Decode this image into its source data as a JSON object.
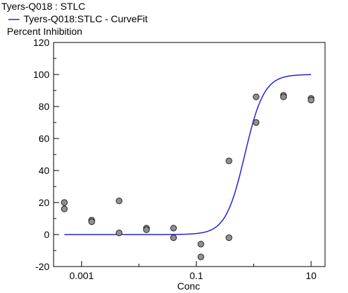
{
  "chart_data": {
    "type": "scatter",
    "title": "Tyers-Q018  : STLC",
    "legend": [
      {
        "label": "Tyers-Q018:STLC - CurveFit",
        "color": "#2222dd"
      }
    ],
    "ylabel": "Percent Inhibition",
    "xlabel": "Conc",
    "x_scale": "log",
    "xlim": [
      0.0005,
      10
    ],
    "ylim": [
      -20,
      120
    ],
    "x_ticks": [
      0.001,
      0.1,
      10
    ],
    "x_tick_labels": [
      "0.001",
      "0.1",
      "10"
    ],
    "y_ticks": [
      -20,
      0,
      20,
      40,
      60,
      80,
      100,
      120
    ],
    "y_tick_labels": [
      "-20",
      "0",
      "20",
      "40",
      "60",
      "80",
      "100",
      "120"
    ],
    "grid": false,
    "series": [
      {
        "kind": "scatter",
        "color": "#909090",
        "points": [
          {
            "x": 0.0005,
            "y": 20
          },
          {
            "x": 0.0005,
            "y": 16
          },
          {
            "x": 0.0015,
            "y": 9
          },
          {
            "x": 0.0015,
            "y": 8
          },
          {
            "x": 0.0045,
            "y": 21
          },
          {
            "x": 0.0045,
            "y": 1
          },
          {
            "x": 0.0135,
            "y": 4
          },
          {
            "x": 0.0135,
            "y": 3
          },
          {
            "x": 0.04,
            "y": 4
          },
          {
            "x": 0.04,
            "y": -2
          },
          {
            "x": 0.12,
            "y": -6
          },
          {
            "x": 0.12,
            "y": -14
          },
          {
            "x": 0.37,
            "y": 46
          },
          {
            "x": 0.37,
            "y": -2
          },
          {
            "x": 1.1,
            "y": 86
          },
          {
            "x": 1.1,
            "y": 70
          },
          {
            "x": 3.3,
            "y": 87
          },
          {
            "x": 3.3,
            "y": 86
          },
          {
            "x": 10,
            "y": 85
          },
          {
            "x": 10,
            "y": 84
          }
        ]
      },
      {
        "kind": "curve",
        "name": "Tyers-Q018:STLC - CurveFit",
        "color": "#2222dd",
        "model": "4PL",
        "bottom": 0,
        "top": 100,
        "ec50": 0.7,
        "hill": 2.6,
        "x_from": 0.0005,
        "x_to": 10
      }
    ]
  }
}
